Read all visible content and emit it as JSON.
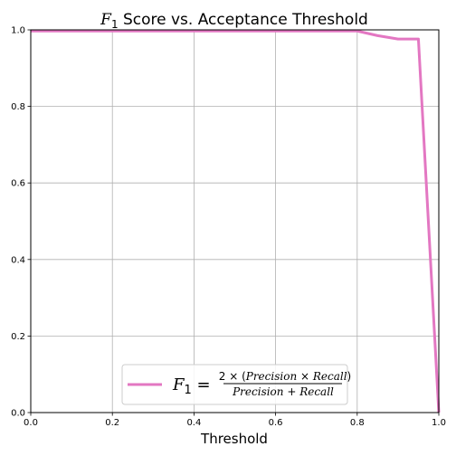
{
  "chart_data": {
    "type": "line",
    "title_symbol": "F",
    "title_subscript": "1",
    "title_rest": " Score vs. Acceptance Threshold",
    "xlabel": "Threshold",
    "ylabel": "",
    "xlim": [
      0,
      1
    ],
    "ylim": [
      0,
      1
    ],
    "grid": true,
    "legend_placement": "lower center",
    "x_ticks": [
      "0.0",
      "0.2",
      "0.4",
      "0.6",
      "0.8",
      "1.0"
    ],
    "y_ticks": [
      "0.0",
      "0.2",
      "0.4",
      "0.6",
      "0.8",
      "1.0"
    ],
    "series": [
      {
        "color": "#e377c2",
        "x": [
          0.0,
          0.05,
          0.1,
          0.15,
          0.2,
          0.25,
          0.3,
          0.35,
          0.4,
          0.45,
          0.5,
          0.55,
          0.6,
          0.65,
          0.7,
          0.75,
          0.8,
          0.85,
          0.9,
          0.95,
          1.0
        ],
        "y": [
          0.997,
          0.997,
          0.997,
          0.997,
          0.997,
          0.997,
          0.997,
          0.997,
          0.997,
          0.997,
          0.997,
          0.997,
          0.997,
          0.997,
          0.997,
          0.997,
          0.997,
          0.985,
          0.976,
          0.976,
          0.0
        ]
      }
    ],
    "legend": {
      "lhs_symbol": "F",
      "lhs_sub": "1",
      "equals": " = ",
      "numerator_prefix": "2 × (",
      "numerator_var1": "Precision",
      "numerator_times": " × ",
      "numerator_var2": "Recall",
      "numerator_suffix": ")",
      "denominator_var1": "Precision",
      "denominator_plus": " + ",
      "denominator_var2": "Recall"
    }
  }
}
